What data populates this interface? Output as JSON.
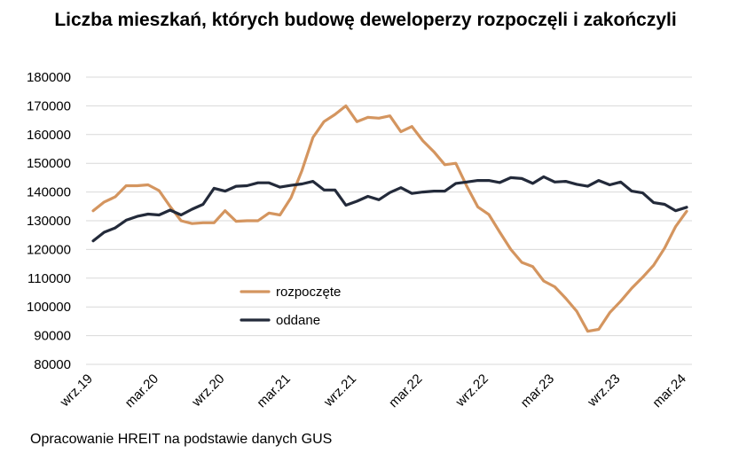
{
  "chart_data": {
    "type": "line",
    "title": "Liczba mieszkań, których budowę deweloperzy rozpoczęli i zakończyli",
    "xlabel": "",
    "ylabel": "",
    "ylim": [
      80000,
      180000
    ],
    "yticks": [
      80000,
      90000,
      100000,
      110000,
      120000,
      130000,
      140000,
      150000,
      160000,
      170000,
      180000
    ],
    "ytick_labels": [
      "80000",
      "90000",
      "100000",
      "110000",
      "120000",
      "130000",
      "140000",
      "150000",
      "160000",
      "170000",
      "180000"
    ],
    "x": [
      "wrz.19",
      "paź.19",
      "lis.19",
      "gru.19",
      "sty.20",
      "lut.20",
      "mar.20",
      "kwi.20",
      "maj.20",
      "cze.20",
      "lip.20",
      "sie.20",
      "wrz.20",
      "paź.20",
      "lis.20",
      "gru.20",
      "sty.21",
      "lut.21",
      "mar.21",
      "kwi.21",
      "maj.21",
      "cze.21",
      "lip.21",
      "sie.21",
      "wrz.21",
      "paź.21",
      "lis.21",
      "gru.21",
      "sty.22",
      "lut.22",
      "mar.22",
      "kwi.22",
      "maj.22",
      "cze.22",
      "lip.22",
      "sie.22",
      "wrz.22",
      "paź.22",
      "lis.22",
      "gru.22",
      "sty.23",
      "lut.23",
      "mar.23",
      "kwi.23",
      "maj.23",
      "cze.23",
      "lip.23",
      "sie.23",
      "wrz.23",
      "paź.23",
      "lis.23",
      "gru.23",
      "sty.24",
      "lut.24",
      "mar.24"
    ],
    "xtick_labels": [
      {
        "index": 0,
        "label": "wrz.19"
      },
      {
        "index": 6,
        "label": "mar.20"
      },
      {
        "index": 12,
        "label": "wrz.20"
      },
      {
        "index": 18,
        "label": "mar.21"
      },
      {
        "index": 24,
        "label": "wrz.21"
      },
      {
        "index": 30,
        "label": "mar.22"
      },
      {
        "index": 36,
        "label": "wrz.22"
      },
      {
        "index": 42,
        "label": "mar.23"
      },
      {
        "index": 48,
        "label": "wrz.23"
      },
      {
        "index": 54,
        "label": "mar.24"
      }
    ],
    "series": [
      {
        "name": "rozpoczęte",
        "color": "#d4955f",
        "values": [
          133500,
          136500,
          138300,
          142200,
          142200,
          142500,
          140500,
          135000,
          130000,
          129000,
          129300,
          129300,
          133500,
          129800,
          130000,
          130000,
          132700,
          132000,
          138000,
          147500,
          159000,
          164500,
          167000,
          170000,
          164500,
          166000,
          165700,
          166500,
          161000,
          162800,
          157800,
          154000,
          149500,
          150000,
          142000,
          134800,
          132200,
          126000,
          120000,
          115500,
          114000,
          109000,
          107000,
          103000,
          98500,
          91500,
          92200,
          98000,
          102000,
          106500,
          110300,
          114500,
          120500,
          128000,
          133300
        ]
      },
      {
        "name": "oddane",
        "color": "#232a3a",
        "values": [
          123000,
          126000,
          127500,
          130200,
          131500,
          132300,
          132000,
          133700,
          132000,
          134000,
          135700,
          141300,
          140300,
          142000,
          142200,
          143200,
          143200,
          141700,
          142300,
          142800,
          143700,
          140700,
          140700,
          135400,
          136800,
          138500,
          137300,
          139800,
          141500,
          139500,
          140000,
          140300,
          140300,
          143000,
          143500,
          144000,
          144000,
          143300,
          145000,
          144700,
          143000,
          145300,
          143500,
          143700,
          142700,
          142000,
          144000,
          142500,
          143500,
          140300,
          139700,
          136300,
          135700,
          133500,
          134700
        ]
      }
    ],
    "legend": {
      "placement": "center-left",
      "entries": [
        "rozpoczęte",
        "oddane"
      ]
    },
    "grid": "horizontal"
  },
  "source_note": "Opracowanie HREIT na podstawie danych GUS"
}
